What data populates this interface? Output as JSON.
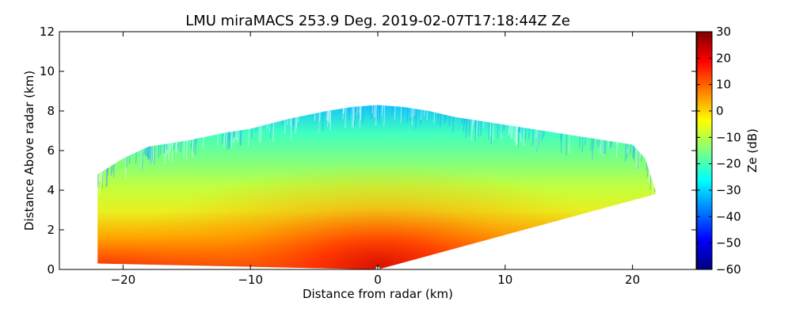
{
  "chart_data": {
    "type": "heatmap",
    "title": "LMU miraMACS 253.9 Deg. 2019-02-07T17:18:44Z  Ze",
    "xlabel": "Distance from radar (km)",
    "ylabel": "Distance Above radar  (km)",
    "xlim": [
      -25,
      25
    ],
    "ylim": [
      0,
      12
    ],
    "x_ticks": [
      -20,
      -10,
      0,
      10,
      20
    ],
    "x_tick_labels": [
      "−20",
      "−10",
      "0",
      "10",
      "20"
    ],
    "y_ticks": [
      0,
      2,
      4,
      6,
      8,
      10,
      12
    ],
    "y_tick_labels": [
      "0",
      "2",
      "4",
      "6",
      "8",
      "10",
      "12"
    ],
    "grid": false,
    "colorbar": {
      "label": "Ze (dB)",
      "range": [
        -60,
        30
      ],
      "ticks": [
        30,
        20,
        10,
        0,
        -10,
        -20,
        -30,
        -40,
        -50,
        -60
      ],
      "tick_labels": [
        "30",
        "20",
        "10",
        "0",
        "−10",
        "−20",
        "−30",
        "−40",
        "−50",
        "−60"
      ],
      "colormap": [
        "#00007f",
        "#0000ff",
        "#007fff",
        "#00ffff",
        "#7fff7f",
        "#ffff00",
        "#ff7f00",
        "#ff0000",
        "#7f0000"
      ]
    },
    "echo_top_km": [
      {
        "x": -22,
        "top": 4.8
      },
      {
        "x": -20,
        "top": 5.6
      },
      {
        "x": -18,
        "top": 6.2
      },
      {
        "x": -15,
        "top": 6.5
      },
      {
        "x": -12,
        "top": 6.9
      },
      {
        "x": -10,
        "top": 7.1
      },
      {
        "x": -7,
        "top": 7.6
      },
      {
        "x": -4,
        "top": 8.0
      },
      {
        "x": -2,
        "top": 8.2
      },
      {
        "x": 0,
        "top": 8.3
      },
      {
        "x": 2,
        "top": 8.2
      },
      {
        "x": 4,
        "top": 8.0
      },
      {
        "x": 6,
        "top": 7.7
      },
      {
        "x": 9,
        "top": 7.4
      },
      {
        "x": 12,
        "top": 7.1
      },
      {
        "x": 15,
        "top": 6.8
      },
      {
        "x": 18,
        "top": 6.5
      },
      {
        "x": 20,
        "top": 6.3
      },
      {
        "x": 21,
        "top": 5.6
      },
      {
        "x": 21.8,
        "top": 4.0
      }
    ],
    "echo_bottom_km": [
      {
        "x": -22,
        "bottom": 0.3
      },
      {
        "x": 0,
        "bottom": 0.0
      },
      {
        "x": 21.8,
        "bottom": 3.8
      }
    ],
    "ze_profile_db": [
      {
        "height_km": 0.0,
        "ze": 22
      },
      {
        "height_km": 0.5,
        "ze": 20
      },
      {
        "height_km": 1.0,
        "ze": 14
      },
      {
        "height_km": 2.0,
        "ze": 8
      },
      {
        "height_km": 3.0,
        "ze": 2
      },
      {
        "height_km": 4.0,
        "ze": -6
      },
      {
        "height_km": 5.0,
        "ze": -12
      },
      {
        "height_km": 6.0,
        "ze": -18
      },
      {
        "height_km": 7.0,
        "ze": -24
      },
      {
        "height_km": 8.0,
        "ze": -30
      }
    ]
  }
}
